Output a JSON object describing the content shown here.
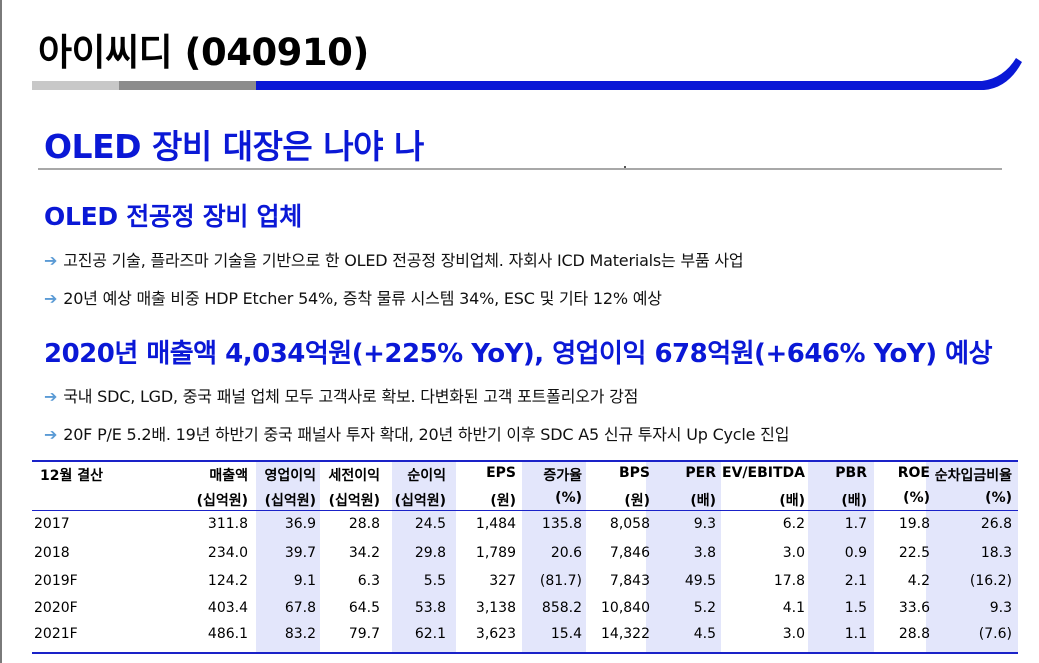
{
  "company_title": "아이씨디 (040910)",
  "headline": "OLED 장비 대장은 나야 나",
  "sections": [
    {
      "title": "OLED 전공정 장비 업체",
      "bullets": [
        "고진공 기술, 플라즈마 기술을 기반으로 한 OLED 전공정 장비업체. 자회사 ICD Materials는 부품 사업",
        "20년 예상 매출 비중 HDP Etcher 54%, 증착 물류 시스템 34%, ESC 및 기타 12% 예상"
      ]
    },
    {
      "title": "2020년 매출액 4,034억원(+225% YoY), 영업이익 678억원(+646% YoY) 예상",
      "bullets": [
        "국내 SDC, LGD, 중국 패널 업체 모두 고객사로 확보. 다변화된 고객 포트폴리오가 강점",
        "20F P/E 5.2배. 19년 하반기 중국 패널사 투자 확대, 20년 하반기 이후 SDC A5 신규 투자시 Up Cycle 진입"
      ]
    }
  ],
  "bullet_arrow": "➔",
  "table": {
    "first_header": "12월 결산",
    "columns": [
      {
        "name": "매출액",
        "unit": "(십억원)"
      },
      {
        "name": "영업이익",
        "unit": "(십억원)"
      },
      {
        "name": "세전이익",
        "unit": "(십억원)"
      },
      {
        "name": "순이익",
        "unit": "(십억원)"
      },
      {
        "name": "EPS",
        "unit": "(원)"
      },
      {
        "name": "증가율",
        "unit": "(%)"
      },
      {
        "name": "BPS",
        "unit": "(원)"
      },
      {
        "name": "PER",
        "unit": "(배)"
      },
      {
        "name": "EV/EBITDA",
        "unit": "(배)"
      },
      {
        "name": "PBR",
        "unit": "(배)"
      },
      {
        "name": "ROE",
        "unit": "(%)"
      },
      {
        "name": "순차입금비율",
        "unit": "(%)"
      }
    ],
    "rows": [
      {
        "year": "2017",
        "values": [
          "311.8",
          "36.9",
          "28.8",
          "24.5",
          "1,484",
          "135.8",
          "8,058",
          "9.3",
          "6.2",
          "1.7",
          "19.8",
          "26.8"
        ]
      },
      {
        "year": "2018",
        "values": [
          "234.0",
          "39.7",
          "34.2",
          "29.8",
          "1,789",
          "20.6",
          "7,846",
          "3.8",
          "3.0",
          "0.9",
          "22.5",
          "18.3"
        ]
      },
      {
        "year": "2019F",
        "values": [
          "124.2",
          "9.1",
          "6.3",
          "5.5",
          "327",
          "(81.7)",
          "7,843",
          "49.5",
          "17.8",
          "2.1",
          "4.2",
          "(16.2)"
        ]
      },
      {
        "year": "2020F",
        "values": [
          "403.4",
          "67.8",
          "64.5",
          "53.8",
          "3,138",
          "858.2",
          "10,840",
          "5.2",
          "4.1",
          "1.5",
          "33.6",
          "9.3"
        ]
      },
      {
        "year": "2021F",
        "values": [
          "486.1",
          "83.2",
          "79.7",
          "62.1",
          "3,623",
          "15.4",
          "14,322",
          "4.5",
          "3.0",
          "1.1",
          "28.8",
          "(7.6)"
        ]
      }
    ]
  },
  "colors": {
    "accent_blue": "#0a18d6",
    "bar_gray_light": "#c8c8c8",
    "bar_gray_dark": "#8c8c8c",
    "table_shade": "#e3e6fb",
    "arrow": "#5b9bd5"
  }
}
